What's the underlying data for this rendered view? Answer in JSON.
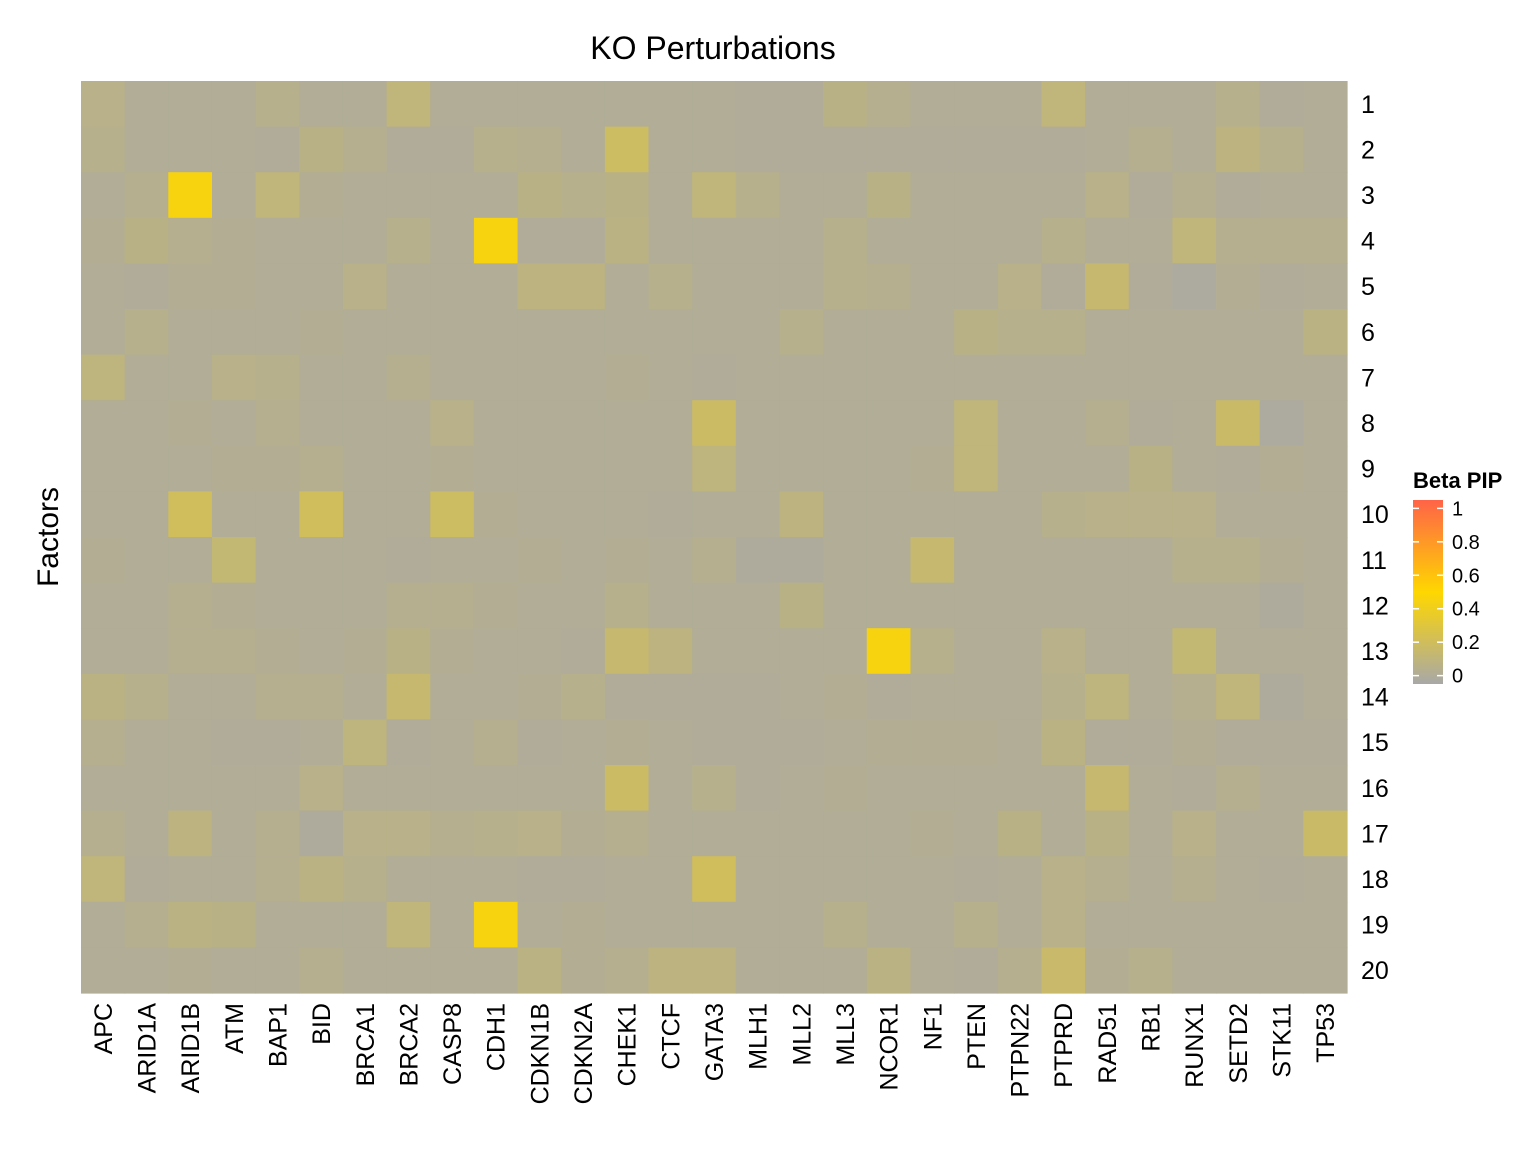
{
  "chart_data": {
    "type": "heatmap",
    "title": "KO Perturbations",
    "xlabel": "",
    "ylabel": "Factors",
    "x_categories": [
      "APC",
      "ARID1A",
      "ARID1B",
      "ATM",
      "BAP1",
      "BID",
      "BRCA1",
      "BRCA2",
      "CASP8",
      "CDH1",
      "CDKN1B",
      "CDKN2A",
      "CHEK1",
      "CTCF",
      "GATA3",
      "MLH1",
      "MLL2",
      "MLL3",
      "NCOR1",
      "NF1",
      "PTEN",
      "PTPN22",
      "PTPRD",
      "RAD51",
      "RB1",
      "RUNX1",
      "SETD2",
      "STK11",
      "TP53"
    ],
    "y_categories": [
      "1",
      "2",
      "3",
      "4",
      "5",
      "6",
      "7",
      "8",
      "9",
      "10",
      "11",
      "12",
      "13",
      "14",
      "15",
      "16",
      "17",
      "18",
      "19",
      "20"
    ],
    "values": [
      [
        0.05,
        0.01,
        0.01,
        0.01,
        0.04,
        0.01,
        0.01,
        0.1,
        0.01,
        0.01,
        0.01,
        0.01,
        0.01,
        0.01,
        0.01,
        0.0,
        0.0,
        0.06,
        0.03,
        0.01,
        0.01,
        0.01,
        0.1,
        0.01,
        0.01,
        0.01,
        0.04,
        0.0,
        0.01
      ],
      [
        0.04,
        0.01,
        0.01,
        0.01,
        0.0,
        0.06,
        0.03,
        0.0,
        0.0,
        0.04,
        0.03,
        0.01,
        0.18,
        0.01,
        0.01,
        0.0,
        0.0,
        0.0,
        0.0,
        0.0,
        0.0,
        0.0,
        0.0,
        0.01,
        0.03,
        0.01,
        0.08,
        0.04,
        0.01
      ],
      [
        0.01,
        0.03,
        0.45,
        0.01,
        0.1,
        0.02,
        0.01,
        0.01,
        0.01,
        0.01,
        0.06,
        0.04,
        0.06,
        0.01,
        0.1,
        0.04,
        0.01,
        0.01,
        0.06,
        0.01,
        0.01,
        0.01,
        0.01,
        0.05,
        0.0,
        0.03,
        0.0,
        0.01,
        0.01
      ],
      [
        0.02,
        0.06,
        0.03,
        0.02,
        0.01,
        0.01,
        0.01,
        0.04,
        0.01,
        0.45,
        0.0,
        0.0,
        0.07,
        0.01,
        0.01,
        0.01,
        0.01,
        0.04,
        0.01,
        0.01,
        0.01,
        0.01,
        0.04,
        0.01,
        0.01,
        0.1,
        0.03,
        0.03,
        0.03
      ],
      [
        0.01,
        0.0,
        0.02,
        0.02,
        0.01,
        0.01,
        0.05,
        0.01,
        0.01,
        0.01,
        0.08,
        0.08,
        0.01,
        0.04,
        0.01,
        0.01,
        0.01,
        0.04,
        0.03,
        0.01,
        0.01,
        0.05,
        0.0,
        0.14,
        0.0,
        -0.02,
        0.02,
        0.0,
        0.01
      ],
      [
        0.01,
        0.04,
        0.01,
        0.01,
        0.01,
        0.02,
        0.01,
        0.01,
        0.01,
        0.01,
        0.01,
        0.01,
        0.01,
        0.01,
        0.01,
        0.01,
        0.04,
        0.01,
        0.01,
        0.01,
        0.06,
        0.04,
        0.04,
        0.01,
        0.01,
        0.01,
        0.01,
        0.01,
        0.07
      ],
      [
        0.09,
        0.01,
        0.01,
        0.05,
        0.04,
        0.01,
        0.01,
        0.03,
        0.01,
        0.01,
        0.01,
        0.01,
        0.02,
        0.01,
        0.0,
        0.01,
        0.01,
        0.01,
        0.01,
        0.01,
        0.01,
        0.01,
        0.01,
        0.01,
        0.01,
        0.01,
        0.01,
        0.01,
        0.01
      ],
      [
        0.01,
        0.01,
        0.02,
        0.01,
        0.03,
        0.01,
        0.01,
        0.01,
        0.05,
        0.01,
        0.01,
        0.01,
        0.01,
        0.01,
        0.17,
        0.01,
        0.01,
        0.01,
        0.01,
        0.01,
        0.1,
        0.01,
        0.01,
        0.03,
        0.0,
        0.01,
        0.16,
        -0.02,
        0.01
      ],
      [
        0.01,
        0.01,
        0.01,
        0.02,
        0.02,
        0.03,
        0.01,
        0.01,
        0.02,
        0.01,
        0.01,
        0.01,
        0.01,
        0.01,
        0.09,
        0.01,
        0.01,
        0.01,
        0.01,
        0.02,
        0.1,
        0.01,
        0.01,
        0.01,
        0.06,
        0.01,
        0.0,
        0.02,
        0.01
      ],
      [
        0.01,
        0.01,
        0.2,
        0.01,
        0.01,
        0.2,
        0.01,
        0.01,
        0.18,
        0.02,
        0.01,
        0.01,
        0.01,
        0.0,
        0.01,
        0.01,
        0.08,
        0.01,
        0.01,
        0.01,
        0.01,
        0.01,
        0.04,
        0.05,
        0.05,
        0.05,
        0.01,
        0.01,
        0.01
      ],
      [
        0.02,
        0.01,
        0.01,
        0.12,
        0.01,
        0.01,
        0.01,
        0.0,
        0.01,
        0.01,
        0.02,
        0.01,
        0.02,
        0.01,
        0.03,
        -0.01,
        -0.01,
        0.01,
        0.01,
        0.14,
        0.01,
        0.01,
        0.01,
        0.01,
        0.01,
        0.04,
        0.04,
        0.02,
        0.01
      ],
      [
        0.01,
        0.01,
        0.03,
        0.02,
        0.01,
        0.01,
        0.01,
        0.03,
        0.03,
        0.02,
        0.01,
        0.01,
        0.04,
        0.01,
        0.01,
        0.01,
        0.06,
        0.01,
        0.01,
        0.01,
        0.01,
        0.01,
        0.01,
        0.01,
        0.01,
        0.01,
        0.01,
        -0.01,
        0.01
      ],
      [
        0.01,
        0.01,
        0.03,
        0.03,
        0.02,
        0.01,
        0.02,
        0.06,
        0.02,
        0.01,
        0.01,
        0.0,
        0.14,
        0.08,
        0.01,
        0.01,
        0.01,
        0.01,
        0.45,
        0.04,
        0.01,
        0.01,
        0.05,
        0.01,
        0.01,
        0.12,
        0.01,
        0.01,
        0.01
      ],
      [
        0.07,
        0.04,
        0.01,
        0.01,
        0.03,
        0.03,
        0.01,
        0.14,
        0.01,
        0.01,
        0.02,
        0.04,
        0.0,
        0.0,
        0.0,
        0.0,
        0.01,
        0.02,
        0.0,
        0.01,
        0.01,
        0.01,
        0.04,
        0.09,
        0.01,
        0.03,
        0.1,
        -0.01,
        0.01
      ],
      [
        0.03,
        0.01,
        0.01,
        0.0,
        0.0,
        0.01,
        0.09,
        0.0,
        0.01,
        0.03,
        0.0,
        0.01,
        0.02,
        0.01,
        0.0,
        0.0,
        0.0,
        0.01,
        0.02,
        0.02,
        0.02,
        0.01,
        0.07,
        0.0,
        0.0,
        0.02,
        0.0,
        0.0,
        0.0
      ],
      [
        0.01,
        0.01,
        0.01,
        0.01,
        0.01,
        0.05,
        0.01,
        0.01,
        0.01,
        0.01,
        0.01,
        0.01,
        0.17,
        0.01,
        0.04,
        0.0,
        0.01,
        0.02,
        0.01,
        0.01,
        0.01,
        0.01,
        0.01,
        0.14,
        0.01,
        0.0,
        0.03,
        0.01,
        0.01
      ],
      [
        0.03,
        0.01,
        0.08,
        0.01,
        0.03,
        -0.01,
        0.05,
        0.05,
        0.03,
        0.04,
        0.05,
        0.02,
        0.03,
        0.01,
        0.01,
        0.01,
        0.01,
        0.01,
        0.01,
        0.02,
        0.01,
        0.06,
        0.01,
        0.06,
        0.01,
        0.05,
        0.01,
        0.01,
        0.16
      ],
      [
        0.1,
        0.0,
        0.01,
        0.01,
        0.03,
        0.07,
        0.04,
        0.01,
        0.01,
        0.01,
        0.0,
        0.0,
        0.01,
        0.01,
        0.2,
        0.01,
        0.01,
        0.01,
        0.01,
        0.01,
        0.0,
        0.01,
        0.05,
        0.03,
        0.01,
        0.03,
        0.01,
        0.0,
        0.01
      ],
      [
        0.01,
        0.03,
        0.07,
        0.06,
        0.01,
        0.01,
        0.01,
        0.1,
        0.01,
        0.45,
        0.01,
        0.02,
        0.01,
        0.01,
        0.01,
        0.01,
        0.01,
        0.04,
        0.01,
        0.01,
        0.04,
        0.01,
        0.05,
        0.01,
        0.01,
        0.01,
        0.01,
        0.01,
        0.01
      ],
      [
        0.01,
        0.01,
        0.02,
        0.01,
        0.01,
        0.03,
        0.01,
        0.01,
        0.01,
        0.01,
        0.07,
        0.02,
        0.03,
        0.08,
        0.08,
        0.01,
        0.01,
        0.01,
        0.07,
        0.01,
        0.0,
        0.03,
        0.15,
        0.02,
        0.04,
        0.01,
        0.01,
        0.01,
        0.01
      ]
    ],
    "legend": {
      "title": "Beta PIP",
      "ticks": [
        0,
        0.2,
        0.4,
        0.6,
        0.8,
        1
      ],
      "tick_labels": [
        "0",
        "0.2",
        "0.4",
        "0.6",
        "0.8",
        "1"
      ],
      "range": [
        -0.05,
        1.05
      ],
      "colors": [
        "#A8A8A8",
        "#FFD700",
        "#FF6347"
      ],
      "placement": "right"
    }
  }
}
